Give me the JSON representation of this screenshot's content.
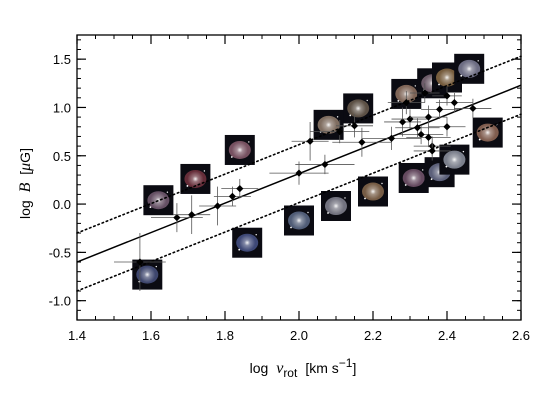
{
  "chart_data": {
    "type": "scatter",
    "title": "",
    "xlabel": {
      "prefix": "log",
      "var": "v",
      "sub": "rot",
      "unit": "[km s",
      "sup": "−1",
      "close": "]"
    },
    "ylabel": {
      "prefix": "log",
      "var": "B",
      "unit_open": "[",
      "mu": "μ",
      "unit": "G]"
    },
    "xlim": [
      1.4,
      2.6
    ],
    "ylim": [
      -1.2,
      1.75
    ],
    "xticks": [
      "1.4",
      "1.6",
      "1.8",
      "2.0",
      "2.2",
      "2.4",
      "2.6"
    ],
    "yticks": [
      "1.5",
      "1.0",
      "0.5",
      "0.0",
      "-0.5",
      "-1.0"
    ],
    "xtick_values": [
      1.4,
      1.6,
      1.8,
      2.0,
      2.2,
      2.4,
      2.6
    ],
    "ytick_values": [
      1.5,
      1.0,
      0.5,
      0.0,
      -0.5,
      -1.0
    ],
    "grid": false,
    "fit_line": {
      "style": "solid",
      "points": [
        [
          1.4,
          -0.6
        ],
        [
          2.6,
          1.23
        ]
      ]
    },
    "band_lines": [
      {
        "style": "dotted",
        "points": [
          [
            1.4,
            -0.3
          ],
          [
            2.6,
            1.53
          ]
        ]
      },
      {
        "style": "dotted",
        "points": [
          [
            1.4,
            -0.9
          ],
          [
            2.6,
            0.93
          ]
        ]
      }
    ],
    "points": [
      {
        "x": 1.57,
        "y": -0.6,
        "xerr": 0.07,
        "yerr": 0.3
      },
      {
        "x": 1.67,
        "y": -0.14,
        "xerr": 0.07,
        "yerr": 0.15
      },
      {
        "x": 1.71,
        "y": -0.11,
        "xerr": 0.05,
        "yerr": 0.2
      },
      {
        "x": 1.78,
        "y": -0.02,
        "xerr": 0.05,
        "yerr": 0.2
      },
      {
        "x": 1.82,
        "y": 0.08,
        "xerr": 0.05,
        "yerr": 0.1
      },
      {
        "x": 1.84,
        "y": 0.16,
        "xerr": 0.05,
        "yerr": 0.1
      },
      {
        "x": 2.0,
        "y": 0.32,
        "xerr": 0.08,
        "yerr": 0.12
      },
      {
        "x": 2.07,
        "y": 0.41,
        "xerr": 0.08,
        "yerr": 0.1
      },
      {
        "x": 2.03,
        "y": 0.65,
        "xerr": 0.05,
        "yerr": 0.2
      },
      {
        "x": 2.11,
        "y": 0.75,
        "xerr": 0.08,
        "yerr": 0.12
      },
      {
        "x": 2.15,
        "y": 0.81,
        "xerr": 0.05,
        "yerr": 0.12
      },
      {
        "x": 2.17,
        "y": 0.64,
        "xerr": 0.08,
        "yerr": 0.15
      },
      {
        "x": 2.25,
        "y": 0.68,
        "xerr": 0.08,
        "yerr": 0.12
      },
      {
        "x": 2.28,
        "y": 0.85,
        "xerr": 0.05,
        "yerr": 0.15
      },
      {
        "x": 2.29,
        "y": 1.05,
        "xerr": 0.05,
        "yerr": 0.12
      },
      {
        "x": 2.3,
        "y": 0.88,
        "xerr": 0.05,
        "yerr": 0.1
      },
      {
        "x": 2.32,
        "y": 0.79,
        "xerr": 0.06,
        "yerr": 0.1
      },
      {
        "x": 2.33,
        "y": 0.72,
        "xerr": 0.06,
        "yerr": 0.1
      },
      {
        "x": 2.34,
        "y": 1.15,
        "xerr": 0.04,
        "yerr": 0.1
      },
      {
        "x": 2.35,
        "y": 0.9,
        "xerr": 0.05,
        "yerr": 0.12
      },
      {
        "x": 2.35,
        "y": 0.69,
        "xerr": 0.06,
        "yerr": 0.1
      },
      {
        "x": 2.36,
        "y": 0.6,
        "xerr": 0.05,
        "yerr": 0.1
      },
      {
        "x": 2.36,
        "y": 0.55,
        "xerr": 0.05,
        "yerr": 0.1
      },
      {
        "x": 2.38,
        "y": 0.98,
        "xerr": 0.05,
        "yerr": 0.1
      },
      {
        "x": 2.4,
        "y": 0.8,
        "xerr": 0.05,
        "yerr": 0.1
      },
      {
        "x": 2.4,
        "y": 1.12,
        "xerr": 0.04,
        "yerr": 0.1
      },
      {
        "x": 2.42,
        "y": 1.05,
        "xerr": 0.05,
        "yerr": 0.1
      },
      {
        "x": 2.47,
        "y": 0.99,
        "xerr": 0.05,
        "yerr": 0.1
      }
    ],
    "galaxy_thumbnails": [
      {
        "x": 1.59,
        "y": -0.73,
        "tone": "#6a78b8"
      },
      {
        "x": 1.62,
        "y": 0.04,
        "tone": "#b08aa8"
      },
      {
        "x": 1.72,
        "y": 0.26,
        "tone": "#b04a5a"
      },
      {
        "x": 1.86,
        "y": -0.4,
        "tone": "#6a7cc8"
      },
      {
        "x": 1.84,
        "y": 0.56,
        "tone": "#d08aa0"
      },
      {
        "x": 2.0,
        "y": -0.17,
        "tone": "#8aa0c8"
      },
      {
        "x": 2.1,
        "y": -0.02,
        "tone": "#c8c8d8"
      },
      {
        "x": 2.08,
        "y": 0.82,
        "tone": "#e0c0a0"
      },
      {
        "x": 2.2,
        "y": 0.13,
        "tone": "#d0a070"
      },
      {
        "x": 2.16,
        "y": 0.99,
        "tone": "#a08a70"
      },
      {
        "x": 2.31,
        "y": 0.27,
        "tone": "#b080a0"
      },
      {
        "x": 2.29,
        "y": 1.14,
        "tone": "#e0b090"
      },
      {
        "x": 2.36,
        "y": 1.25,
        "tone": "#c0a0b0"
      },
      {
        "x": 2.38,
        "y": 0.33,
        "tone": "#a0a8d0"
      },
      {
        "x": 2.4,
        "y": 1.31,
        "tone": "#d0a060"
      },
      {
        "x": 2.46,
        "y": 1.4,
        "tone": "#c0c0e0"
      },
      {
        "x": 2.51,
        "y": 0.74,
        "tone": "#e0a080"
      },
      {
        "x": 2.42,
        "y": 0.46,
        "tone": "#d8e0f0"
      }
    ]
  }
}
